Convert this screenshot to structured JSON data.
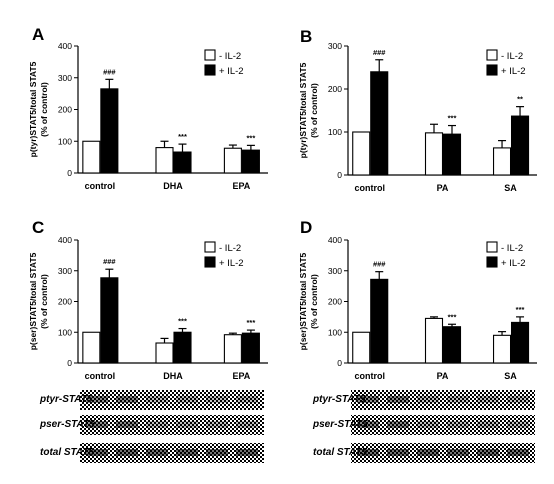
{
  "chart_data": [
    {
      "type": "bar",
      "panel_letter": "A",
      "ylabel": "p(tyr)STAT5/total STAT5\n(% of control)",
      "ylim": [
        0,
        400
      ],
      "yticks": [
        0,
        100,
        200,
        300,
        400
      ],
      "categories": [
        "control",
        "DHA",
        "EPA"
      ],
      "legend": "top-right",
      "series": [
        {
          "name": "- IL-2",
          "color": "#ffffff",
          "values": [
            100,
            80,
            78
          ],
          "errors": [
            0,
            20,
            10
          ]
        },
        {
          "name": "+ IL-2",
          "color": "#000000",
          "values": [
            265,
            66,
            72
          ],
          "errors": [
            30,
            25,
            15
          ]
        }
      ],
      "annotations": [
        {
          "category": 0,
          "series": 1,
          "text": "###"
        },
        {
          "category": 1,
          "series": 1,
          "text": "***"
        },
        {
          "category": 2,
          "series": 1,
          "text": "***"
        }
      ]
    },
    {
      "type": "bar",
      "panel_letter": "B",
      "ylabel": "p(tyr)STAT5/total STAT5\n(% of control)",
      "ylim": [
        0,
        300
      ],
      "yticks": [
        0,
        100,
        200,
        300
      ],
      "categories": [
        "control",
        "PA",
        "SA"
      ],
      "legend": "top-right",
      "series": [
        {
          "name": "- IL-2",
          "color": "#ffffff",
          "values": [
            100,
            98,
            63
          ],
          "errors": [
            0,
            20,
            17
          ]
        },
        {
          "name": "+ IL-2",
          "color": "#000000",
          "values": [
            240,
            95,
            137
          ],
          "errors": [
            28,
            20,
            22
          ]
        }
      ],
      "annotations": [
        {
          "category": 0,
          "series": 1,
          "text": "###"
        },
        {
          "category": 1,
          "series": 1,
          "text": "***"
        },
        {
          "category": 2,
          "series": 1,
          "text": "**"
        }
      ]
    },
    {
      "type": "bar",
      "panel_letter": "C",
      "ylabel": "p(ser)STAT5/total STAT5\n(% of control)",
      "ylim": [
        0,
        400
      ],
      "yticks": [
        0,
        100,
        200,
        300,
        400
      ],
      "categories": [
        "control",
        "DHA",
        "EPA"
      ],
      "legend": "top-right",
      "series": [
        {
          "name": "- IL-2",
          "color": "#ffffff",
          "values": [
            100,
            65,
            92
          ],
          "errors": [
            0,
            15,
            5
          ]
        },
        {
          "name": "+ IL-2",
          "color": "#000000",
          "values": [
            277,
            100,
            97
          ],
          "errors": [
            28,
            12,
            10
          ]
        }
      ],
      "annotations": [
        {
          "category": 0,
          "series": 1,
          "text": "###"
        },
        {
          "category": 1,
          "series": 1,
          "text": "***"
        },
        {
          "category": 2,
          "series": 1,
          "text": "***"
        }
      ]
    },
    {
      "type": "bar",
      "panel_letter": "D",
      "ylabel": "p(ser)STAT5/total STAT5\n(% of control)",
      "ylim": [
        0,
        400
      ],
      "yticks": [
        0,
        100,
        200,
        300,
        400
      ],
      "categories": [
        "control",
        "PA",
        "SA"
      ],
      "legend": "top-right",
      "series": [
        {
          "name": "- IL-2",
          "color": "#ffffff",
          "values": [
            100,
            145,
            90
          ],
          "errors": [
            0,
            5,
            12
          ]
        },
        {
          "name": "+ IL-2",
          "color": "#000000",
          "values": [
            272,
            118,
            132
          ],
          "errors": [
            25,
            8,
            18
          ]
        }
      ],
      "annotations": [
        {
          "category": 0,
          "series": 1,
          "text": "###"
        },
        {
          "category": 1,
          "series": 1,
          "text": "***"
        },
        {
          "category": 2,
          "series": 1,
          "text": "***"
        }
      ]
    }
  ],
  "blots": [
    {
      "labels": [
        "ptyr-STAT5",
        "pser-STAT5",
        "total STAT5"
      ]
    },
    {
      "labels": [
        "ptyr-STAT5",
        "pser-STAT5",
        "total STAT5"
      ]
    }
  ]
}
